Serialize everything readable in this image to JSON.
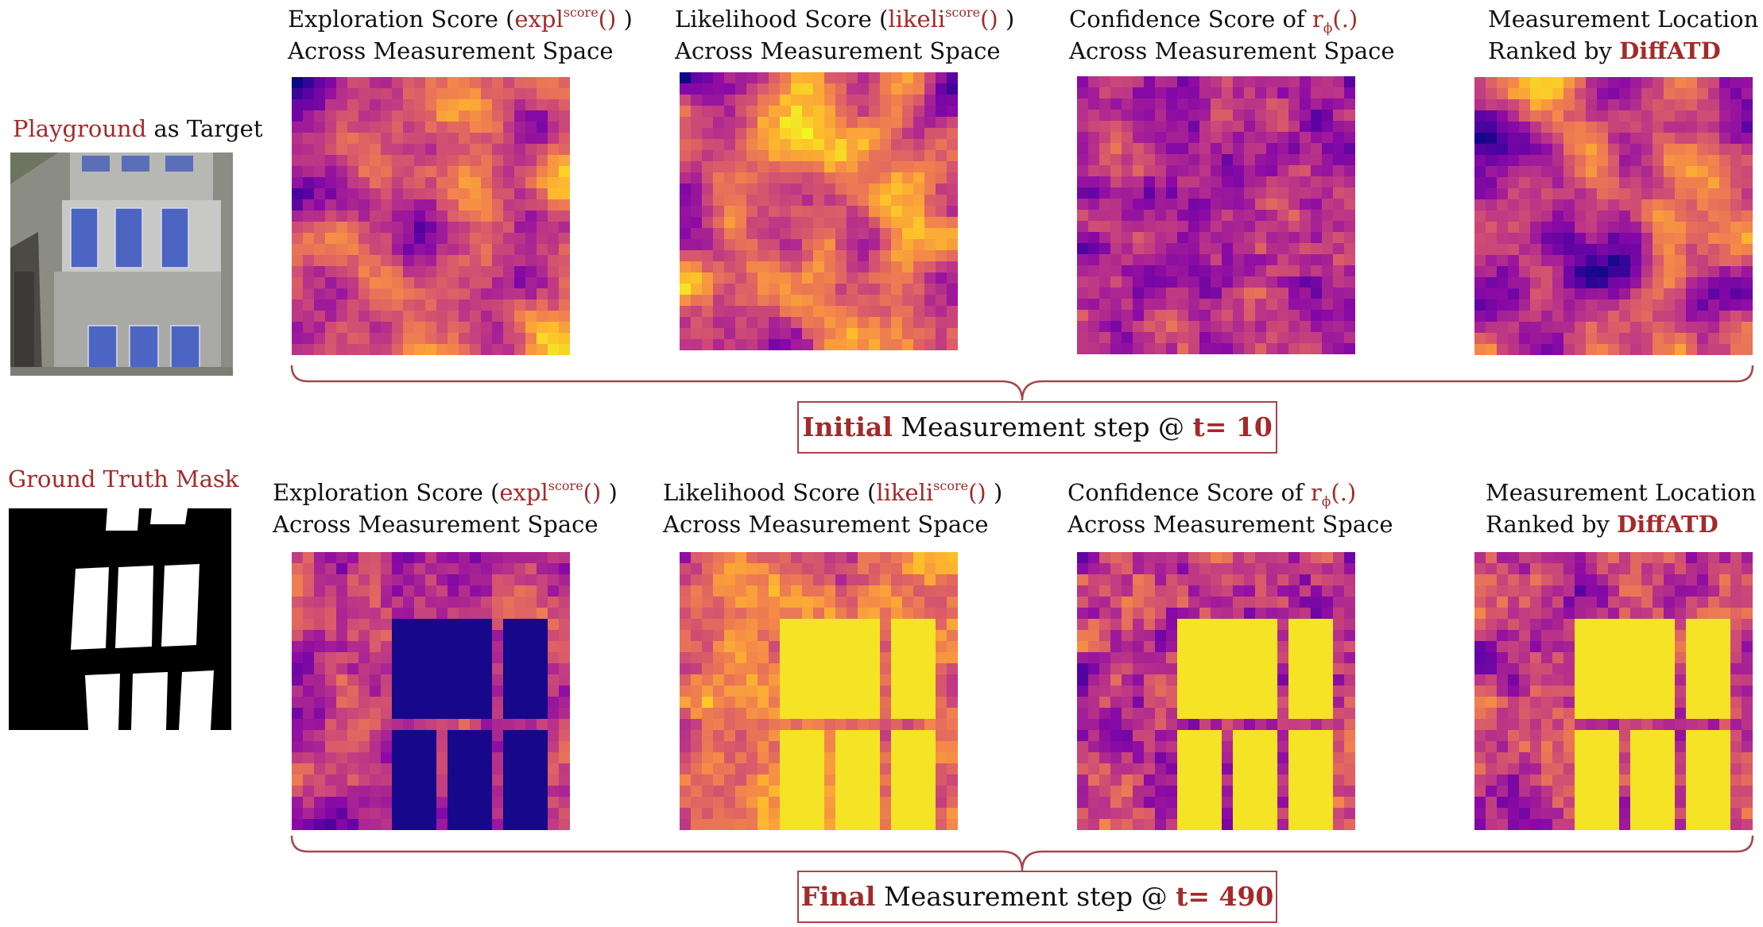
{
  "target": {
    "highlight": "Playground",
    "rest": " as Target"
  },
  "ground_truth": {
    "label": "Ground Truth Mask"
  },
  "panel_titles": {
    "exploration": {
      "pre": "Exploration Score (",
      "fn": "expl",
      "sup": "score",
      "post": "() )",
      "line2": "Across Measurement Space"
    },
    "likelihood": {
      "pre": "Likelihood Score (",
      "fn": "likeli",
      "sup": "score",
      "post": "() )",
      "line2": "Across Measurement Space"
    },
    "confidence": {
      "pre": "Confidence Score of ",
      "fn": "r",
      "sub": "ϕ",
      "post": "(.)",
      "line2": "Across Measurement Space"
    },
    "ranked": {
      "line1": "Measurement Location",
      "pre2": "Ranked by ",
      "model": "DiffATD"
    }
  },
  "steps": {
    "initial": {
      "bold": "Initial",
      "text": " Measurement step  @ ",
      "t": "t= 10"
    },
    "final": {
      "bold": "Final",
      "text": " Measurement step  @ ",
      "t": "t= 490"
    }
  },
  "colors": {
    "accent": "#a52a2a",
    "brace": "#a8454b"
  },
  "colormap": "plasma"
}
